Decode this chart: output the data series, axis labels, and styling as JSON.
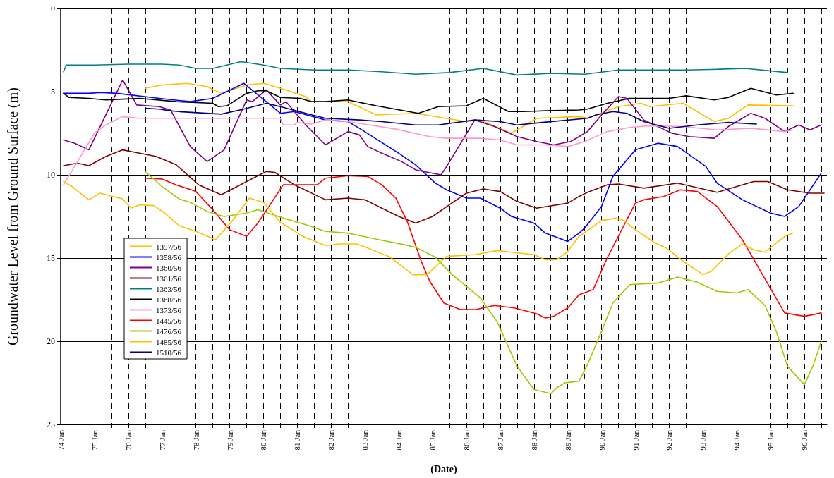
{
  "chart_data": {
    "type": "line",
    "xlabel": "(Date)",
    "ylabel": "Groundwater Level from Ground Surface (m)",
    "ylim": [
      25,
      0
    ],
    "yticks": [
      0,
      5,
      10,
      15,
      20,
      25
    ],
    "xlim": [
      "1974-01",
      "1996-09"
    ],
    "xticks": [
      {
        "value": "1974-01",
        "label": "74 Jan"
      },
      {
        "value": "1974-07",
        "label": null
      },
      {
        "value": "1975-01",
        "label": "75 Jan"
      },
      {
        "value": "1975-07",
        "label": null
      },
      {
        "value": "1976-01",
        "label": "76 Jan"
      },
      {
        "value": "1976-07",
        "label": null
      },
      {
        "value": "1977-01",
        "label": "77 Jan"
      },
      {
        "value": "1977-07",
        "label": null
      },
      {
        "value": "1978-01",
        "label": "78 Jan"
      },
      {
        "value": "1978-07",
        "label": null
      },
      {
        "value": "1979-01",
        "label": "79 Jan"
      },
      {
        "value": "1979-07",
        "label": null
      },
      {
        "value": "1980-01",
        "label": "80 Jan"
      },
      {
        "value": "1980-07",
        "label": null
      },
      {
        "value": "1981-01",
        "label": "81 Jan"
      },
      {
        "value": "1981-07",
        "label": null
      },
      {
        "value": "1982-01",
        "label": "82 Jan"
      },
      {
        "value": "1982-07",
        "label": null
      },
      {
        "value": "1983-01",
        "label": "83 Jan"
      },
      {
        "value": "1983-07",
        "label": null
      },
      {
        "value": "1984-01",
        "label": "84 Jan"
      },
      {
        "value": "1984-07",
        "label": null
      },
      {
        "value": "1985-01",
        "label": "85 Jan"
      },
      {
        "value": "1985-07",
        "label": null
      },
      {
        "value": "1986-01",
        "label": "86 Jan"
      },
      {
        "value": "1986-07",
        "label": null
      },
      {
        "value": "1987-01",
        "label": "87 Jan"
      },
      {
        "value": "1987-07",
        "label": null
      },
      {
        "value": "1988-01",
        "label": "88 Jan"
      },
      {
        "value": "1988-07",
        "label": null
      },
      {
        "value": "1989-01",
        "label": "89 Jan"
      },
      {
        "value": "1989-07",
        "label": null
      },
      {
        "value": "1990-01",
        "label": "90 Jan"
      },
      {
        "value": "1990-07",
        "label": null
      },
      {
        "value": "1991-01",
        "label": "91 Jan"
      },
      {
        "value": "1991-07",
        "label": null
      },
      {
        "value": "1992-01",
        "label": "92 Jan"
      },
      {
        "value": "1992-07",
        "label": null
      },
      {
        "value": "1993-01",
        "label": "93 Jan"
      },
      {
        "value": "1993-07",
        "label": null
      },
      {
        "value": "1994-01",
        "label": "94 Jan"
      },
      {
        "value": "1994-07",
        "label": null
      },
      {
        "value": "1995-01",
        "label": "95 Jan"
      },
      {
        "value": "1995-07",
        "label": null
      },
      {
        "value": "1996-01",
        "label": "96 Jan"
      },
      {
        "value": "1996-07",
        "label": null
      }
    ],
    "grid": true,
    "legend": "bottom left",
    "marker": "none",
    "line_style": "solid",
    "series": [
      {
        "name": "1357/56",
        "color": "#ffc000",
        "x": [
          "1976-07",
          "1977-01",
          "1977-10",
          "1978-05",
          "1978-10",
          "1979-07",
          "1980-01",
          "1980-07",
          "1981-04",
          "1981-06",
          "1982-07",
          "1983-05",
          "1984-07",
          "1986-01",
          "1986-06",
          "1987-05",
          "1988-02",
          "1989-05",
          "1989-08",
          "1990-07",
          "1991-03",
          "1991-06",
          "1992-06",
          "1993-05",
          "1993-10",
          "1994-05",
          "1995-09"
        ],
        "values": [
          4.8,
          4.6,
          4.5,
          4.7,
          5.1,
          4.6,
          4.5,
          4.8,
          5.3,
          5.6,
          5.6,
          6.4,
          6.3,
          6.8,
          6.7,
          7.5,
          6.6,
          6.5,
          6.6,
          5.9,
          5.7,
          5.9,
          5.7,
          6.8,
          6.6,
          5.8,
          5.85
        ]
      },
      {
        "name": "1358/56",
        "color": "#0000ff",
        "x": [
          "1974-02",
          "1974-11",
          "1975-03",
          "1975-09",
          "1976-12",
          "1977-11",
          "1978-07",
          "1979-06",
          "1980-07",
          "1980-12",
          "1981-11",
          "1982-07",
          "1982-11",
          "1984-01",
          "1984-07",
          "1985-02",
          "1985-06",
          "1986-01",
          "1986-06",
          "1987-01",
          "1987-05",
          "1988-01",
          "1988-05",
          "1989-01",
          "1989-05",
          "1989-07",
          "1990-01",
          "1990-05",
          "1991-01",
          "1991-09",
          "1992-04",
          "1993-02",
          "1993-06",
          "1994-03",
          "1995-01",
          "1995-06",
          "1995-11",
          "1996-07"
        ],
        "values": [
          5.1,
          5.1,
          5.05,
          5.1,
          5.4,
          5.6,
          5.4,
          4.5,
          6.3,
          6.2,
          6.7,
          6.8,
          7.2,
          8.7,
          9.4,
          10.5,
          10.9,
          11.4,
          11.4,
          12.0,
          12.5,
          12.9,
          13.5,
          14.0,
          13.5,
          13.2,
          11.9,
          10.1,
          8.5,
          8.1,
          8.3,
          9.5,
          10.5,
          11.5,
          12.3,
          12.5,
          11.9,
          9.9
        ]
      },
      {
        "name": "1360/56",
        "color": "#800080",
        "x": [
          "1974-02",
          "1974-06",
          "1974-11",
          "1975-05",
          "1975-11",
          "1976-04",
          "1976-12",
          "1977-04",
          "1977-11",
          "1978-05",
          "1978-11",
          "1979-07",
          "1979-09",
          "1980-02",
          "1980-07",
          "1980-09",
          "1981-04",
          "1981-11",
          "1982-07",
          "1982-11",
          "1983-02",
          "1983-07",
          "1984-02",
          "1984-07",
          "1985-04",
          "1985-06",
          "1986-04",
          "1986-11",
          "1987-07",
          "1988-02",
          "1988-08",
          "1989-02",
          "1989-05",
          "1989-08",
          "1990-01",
          "1990-07",
          "1990-10",
          "1991-04",
          "1992-02",
          "1992-08",
          "1993-05",
          "1993-10",
          "1994-06",
          "1994-11",
          "1995-06",
          "1995-11",
          "1996-03",
          "1996-07"
        ],
        "values": [
          7.9,
          8.1,
          8.5,
          6.4,
          4.3,
          5.8,
          5.9,
          6.1,
          8.3,
          9.2,
          8.5,
          5.5,
          5.6,
          4.9,
          5.8,
          5.6,
          7.0,
          8.2,
          7.4,
          7.6,
          8.3,
          8.7,
          9.2,
          9.7,
          10.0,
          9.5,
          6.7,
          7.1,
          7.7,
          8.0,
          8.2,
          8.0,
          7.7,
          7.4,
          6.4,
          5.3,
          5.4,
          6.7,
          7.5,
          7.7,
          7.8,
          7.1,
          6.3,
          6.6,
          7.4,
          7.0,
          7.3,
          7.0
        ]
      },
      {
        "name": "1361/56",
        "color": "#800000",
        "x": [
          "1974-02",
          "1974-07",
          "1974-11",
          "1975-05",
          "1975-11",
          "1976-05",
          "1976-11",
          "1977-06",
          "1978-02",
          "1978-10",
          "1979-07",
          "1980-02",
          "1980-05",
          "1980-12",
          "1981-11",
          "1982-07",
          "1983-01",
          "1983-07",
          "1984-01",
          "1984-07",
          "1985-01",
          "1986-01",
          "1986-07",
          "1987-01",
          "1987-07",
          "1988-02",
          "1989-01",
          "1989-05",
          "1989-08",
          "1990-03",
          "1990-07",
          "1991-04",
          "1992-04",
          "1993-06",
          "1994-07",
          "1994-12",
          "1995-07",
          "1996-03",
          "1996-08"
        ],
        "values": [
          9.45,
          9.3,
          9.45,
          8.9,
          8.5,
          8.7,
          8.9,
          9.4,
          10.6,
          11.2,
          10.4,
          9.8,
          9.85,
          10.6,
          11.5,
          11.4,
          11.5,
          12.0,
          12.5,
          12.9,
          12.5,
          11.1,
          10.85,
          11.0,
          11.6,
          12.0,
          11.7,
          11.3,
          11.05,
          10.6,
          10.55,
          10.8,
          10.5,
          11.05,
          10.4,
          10.4,
          10.9,
          11.1,
          11.1
        ]
      },
      {
        "name": "1363/56",
        "color": "#008080",
        "x": [
          "1974-02",
          "1974-03",
          "1975-01",
          "1976-01",
          "1977-01",
          "1977-07",
          "1978-01",
          "1978-07",
          "1979-05",
          "1980-01",
          "1980-07",
          "1981-07",
          "1982-07",
          "1983-07",
          "1984-07",
          "1985-07",
          "1986-07",
          "1987-07",
          "1988-07",
          "1989-07",
          "1990-07",
          "1991-07",
          "1992-07",
          "1993-07",
          "1994-04",
          "1995-07"
        ],
        "values": [
          3.8,
          3.4,
          3.4,
          3.35,
          3.35,
          3.4,
          3.6,
          3.6,
          3.2,
          3.4,
          3.6,
          3.7,
          3.7,
          3.8,
          3.95,
          3.85,
          3.6,
          4.0,
          3.9,
          3.95,
          3.7,
          3.7,
          3.7,
          3.65,
          3.6,
          3.85
        ]
      },
      {
        "name": "1368/56",
        "color": "#000000",
        "x": [
          "1974-02",
          "1974-04",
          "1974-11",
          "1975-05",
          "1975-11",
          "1976-05",
          "1977-06",
          "1978-07",
          "1978-09",
          "1978-12",
          "1979-07",
          "1979-11",
          "1980-02",
          "1980-07",
          "1981-02",
          "1981-06",
          "1981-11",
          "1982-07",
          "1983-05",
          "1984-08",
          "1985-03",
          "1986-01",
          "1986-07",
          "1987-04",
          "1987-09",
          "1988-05",
          "1989-05",
          "1989-08",
          "1990-03",
          "1990-11",
          "1992-01",
          "1992-07",
          "1993-05",
          "1993-10",
          "1994-06",
          "1995-03",
          "1995-09"
        ],
        "values": [
          5.1,
          5.35,
          5.4,
          5.5,
          5.45,
          5.4,
          5.6,
          5.7,
          5.9,
          5.85,
          5.1,
          4.95,
          4.95,
          5.35,
          5.4,
          5.6,
          5.6,
          5.5,
          5.85,
          6.3,
          5.9,
          5.85,
          5.4,
          6.2,
          6.2,
          6.15,
          6.1,
          6.05,
          5.7,
          5.4,
          5.4,
          5.25,
          5.5,
          5.35,
          4.8,
          5.2,
          5.1
        ]
      },
      {
        "name": "1373/56",
        "color": "#ff99cc",
        "x": [
          "1974-02",
          "1974-07",
          "1975-01",
          "1975-05",
          "1975-11",
          "1976-05",
          "1977-06",
          "1979-07",
          "1980-07",
          "1980-08",
          "1980-12",
          "1981-01",
          "1981-06",
          "1981-11",
          "1982-07",
          "1983-12",
          "1984-12",
          "1985-06",
          "1986-06",
          "1987-01",
          "1987-07",
          "1988-05",
          "1989-01",
          "1989-07",
          "1990-03",
          "1990-11",
          "1991-06",
          "1992-06",
          "1993-06",
          "1994-06",
          "1995-06",
          "1995-09"
        ],
        "values": [
          10.6,
          9.2,
          7.5,
          7.0,
          6.5,
          6.6,
          6.6,
          6.6,
          6.6,
          7.0,
          7.0,
          6.85,
          6.95,
          6.7,
          6.8,
          7.25,
          7.7,
          7.8,
          7.8,
          7.9,
          8.2,
          8.2,
          8.3,
          8.0,
          7.4,
          7.15,
          7.05,
          7.1,
          7.3,
          7.2,
          7.4,
          7.3
        ]
      },
      {
        "name": "1445/56",
        "color": "#ff0000",
        "x": [
          "1976-07",
          "1977-01",
          "1977-06",
          "1978-01",
          "1978-07",
          "1979-01",
          "1979-07",
          "1979-11",
          "1980-08",
          "1980-12",
          "1981-08",
          "1981-11",
          "1982-07",
          "1983-02",
          "1983-07",
          "1983-12",
          "1984-04",
          "1984-09",
          "1984-12",
          "1985-05",
          "1985-11",
          "1986-04",
          "1986-11",
          "1987-06",
          "1988-02",
          "1988-05",
          "1988-08",
          "1989-01",
          "1989-05",
          "1989-10",
          "1990-03",
          "1991-01",
          "1991-04",
          "1991-11",
          "1992-05",
          "1992-11",
          "1993-06",
          "1994-03",
          "1995-06",
          "1996-01",
          "1996-07"
        ],
        "values": [
          10.2,
          10.25,
          10.6,
          11.0,
          12.1,
          13.3,
          13.7,
          12.9,
          10.6,
          10.6,
          10.6,
          10.2,
          10.05,
          10.1,
          10.6,
          11.4,
          12.8,
          15.2,
          16.4,
          17.7,
          18.1,
          18.1,
          17.85,
          18.0,
          18.35,
          18.6,
          18.5,
          18.0,
          17.2,
          16.9,
          15.0,
          11.7,
          11.5,
          11.3,
          10.9,
          11.0,
          11.9,
          13.9,
          18.3,
          18.5,
          18.3
        ]
      },
      {
        "name": "1476/56",
        "color": "#99cc00",
        "x": [
          "1976-07",
          "1977-01",
          "1977-07",
          "1977-11",
          "1978-05",
          "1978-11",
          "1979-07",
          "1979-11",
          "1980-08",
          "1981-04",
          "1981-11",
          "1982-07",
          "1983-06",
          "1984-03",
          "1984-07",
          "1985-02",
          "1985-08",
          "1986-06",
          "1986-12",
          "1987-07",
          "1988-01",
          "1988-07",
          "1988-09",
          "1988-12",
          "1989-05",
          "1989-08",
          "1990-01",
          "1990-05",
          "1990-11",
          "1991-09",
          "1992-04",
          "1992-11",
          "1993-06",
          "1994-01",
          "1994-05",
          "1994-11",
          "1995-03",
          "1995-07",
          "1995-11",
          "1996-01",
          "1996-04",
          "1996-07"
        ],
        "values": [
          9.8,
          10.7,
          11.45,
          11.65,
          12.2,
          12.5,
          12.3,
          12.1,
          12.6,
          13.0,
          13.4,
          13.5,
          13.9,
          14.2,
          14.35,
          14.95,
          16.0,
          17.4,
          18.85,
          21.5,
          22.9,
          23.15,
          22.8,
          22.5,
          22.4,
          21.4,
          19.4,
          17.7,
          16.6,
          16.5,
          16.15,
          16.45,
          17.0,
          17.1,
          16.9,
          17.85,
          19.4,
          21.5,
          22.25,
          22.6,
          21.5,
          20.0
        ]
      },
      {
        "name": "1485/56",
        "color": "#ffc000",
        "x": [
          "1974-02",
          "1974-05",
          "1974-11",
          "1975-03",
          "1975-11",
          "1976-02",
          "1976-05",
          "1976-10",
          "1977-02",
          "1977-07",
          "1978-01",
          "1978-08",
          "1979-02",
          "1979-08",
          "1980-01",
          "1980-07",
          "1981-03",
          "1981-11",
          "1982-04",
          "1982-10",
          "1983-02",
          "1983-10",
          "1984-06",
          "1984-11",
          "1985-06",
          "1986-04",
          "1986-12",
          "1987-05",
          "1988-01",
          "1988-05",
          "1988-09",
          "1989-01",
          "1989-05",
          "1990-01",
          "1990-06",
          "1990-09",
          "1991-01",
          "1991-08",
          "1991-12",
          "1992-06",
          "1993-01",
          "1993-04",
          "1993-10",
          "1994-03",
          "1994-07",
          "1994-11",
          "1995-06",
          "1995-09"
        ],
        "values": [
          10.4,
          10.7,
          11.5,
          11.1,
          11.45,
          12.0,
          11.8,
          11.85,
          12.3,
          13.05,
          13.4,
          13.9,
          12.75,
          11.4,
          11.65,
          12.85,
          13.7,
          14.25,
          14.15,
          14.15,
          14.4,
          14.95,
          16.0,
          16.0,
          14.9,
          14.8,
          14.55,
          14.65,
          14.8,
          15.1,
          15.1,
          14.6,
          13.7,
          12.75,
          12.6,
          12.75,
          13.3,
          14.1,
          14.4,
          15.2,
          16.0,
          15.8,
          14.75,
          14.15,
          14.5,
          14.65,
          13.7,
          13.5
        ]
      },
      {
        "name": "1510/56",
        "color": "#000080",
        "x": [
          "1976-07",
          "1976-12",
          "1977-04",
          "1977-07",
          "1978-10",
          "1979-06",
          "1980-02",
          "1980-07",
          "1981-04",
          "1981-11",
          "1982-11",
          "1983-07",
          "1984-07",
          "1985-03",
          "1986-04",
          "1987-01",
          "1987-07",
          "1988-04",
          "1989-08",
          "1989-11",
          "1990-05",
          "1990-10",
          "1991-04",
          "1992-01",
          "1992-11",
          "1993-10",
          "1994-08"
        ],
        "values": [
          6.0,
          6.05,
          6.15,
          6.2,
          6.35,
          6.05,
          5.7,
          5.9,
          6.3,
          6.6,
          6.7,
          6.8,
          7.0,
          7.0,
          6.7,
          6.8,
          7.0,
          6.85,
          6.6,
          6.4,
          6.2,
          6.3,
          6.8,
          7.2,
          7.0,
          6.85,
          6.95
        ]
      }
    ]
  }
}
